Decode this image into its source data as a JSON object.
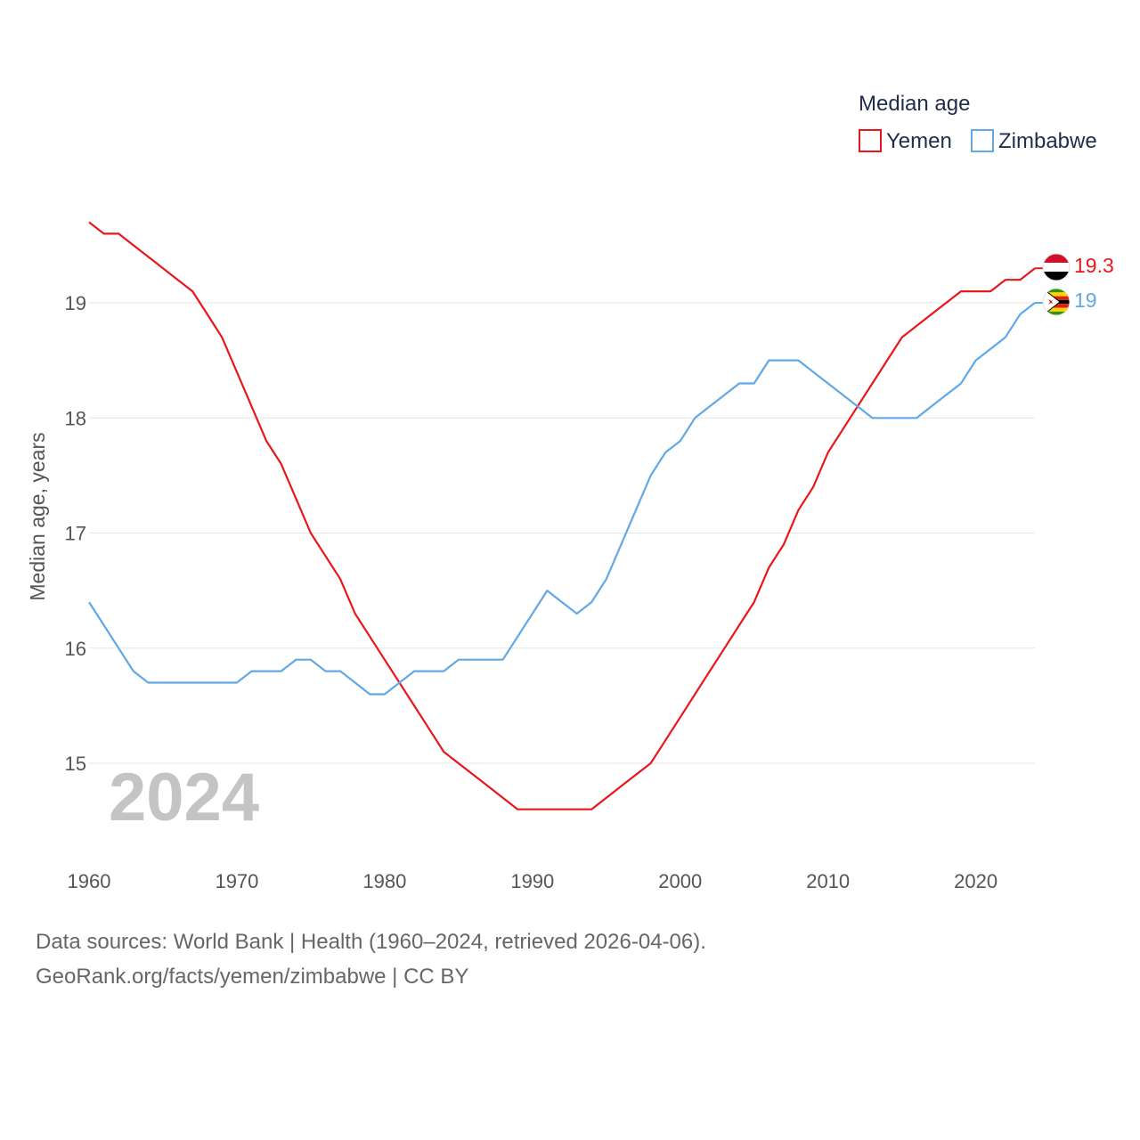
{
  "chart_data": {
    "type": "line",
    "legend_title": "Median age",
    "ylabel": "Median age, years",
    "xlabel": "",
    "current_year": "2024",
    "x_ticks": [
      "1960",
      "1970",
      "1980",
      "1990",
      "2000",
      "2010",
      "2020"
    ],
    "y_ticks": [
      "15",
      "16",
      "17",
      "18",
      "19"
    ],
    "xlim": [
      1960,
      2024
    ],
    "ylim": [
      14.4,
      19.9
    ],
    "legend_position": "top-right",
    "x": [
      1960,
      1961,
      1962,
      1963,
      1964,
      1965,
      1966,
      1967,
      1968,
      1969,
      1970,
      1971,
      1972,
      1973,
      1974,
      1975,
      1976,
      1977,
      1978,
      1979,
      1980,
      1981,
      1982,
      1983,
      1984,
      1985,
      1986,
      1987,
      1988,
      1989,
      1990,
      1991,
      1992,
      1993,
      1994,
      1995,
      1996,
      1997,
      1998,
      1999,
      2000,
      2001,
      2002,
      2003,
      2004,
      2005,
      2006,
      2007,
      2008,
      2009,
      2010,
      2011,
      2012,
      2013,
      2014,
      2015,
      2016,
      2017,
      2018,
      2019,
      2020,
      2021,
      2022,
      2023,
      2024
    ],
    "series": [
      {
        "name": "Yemen",
        "color": "#e8171c",
        "end_label": "19.3",
        "flag": "yemen-flag-icon",
        "values": [
          19.7,
          19.6,
          19.6,
          19.5,
          19.4,
          19.3,
          19.2,
          19.1,
          18.9,
          18.7,
          18.4,
          18.1,
          17.8,
          17.6,
          17.3,
          17.0,
          16.8,
          16.6,
          16.3,
          16.1,
          15.9,
          15.7,
          15.5,
          15.3,
          15.1,
          15.0,
          14.9,
          14.8,
          14.7,
          14.6,
          14.6,
          14.6,
          14.6,
          14.6,
          14.6,
          14.7,
          14.8,
          14.9,
          15.0,
          15.2,
          15.4,
          15.6,
          15.8,
          16.0,
          16.2,
          16.4,
          16.7,
          16.9,
          17.2,
          17.4,
          17.7,
          17.9,
          18.1,
          18.3,
          18.5,
          18.7,
          18.8,
          18.9,
          19.0,
          19.1,
          19.1,
          19.1,
          19.2,
          19.2,
          19.3
        ]
      },
      {
        "name": "Zimbabwe",
        "color": "#62a8e5",
        "end_label": "19",
        "flag": "zimbabwe-flag-icon",
        "values": [
          16.4,
          16.2,
          16.0,
          15.8,
          15.7,
          15.7,
          15.7,
          15.7,
          15.7,
          15.7,
          15.7,
          15.8,
          15.8,
          15.8,
          15.9,
          15.9,
          15.8,
          15.8,
          15.7,
          15.6,
          15.6,
          15.7,
          15.8,
          15.8,
          15.8,
          15.9,
          15.9,
          15.9,
          15.9,
          16.1,
          16.3,
          16.5,
          16.4,
          16.3,
          16.4,
          16.6,
          16.9,
          17.2,
          17.5,
          17.7,
          17.8,
          18.0,
          18.1,
          18.2,
          18.3,
          18.3,
          18.5,
          18.5,
          18.5,
          18.4,
          18.3,
          18.2,
          18.1,
          18.0,
          18.0,
          18.0,
          18.0,
          18.1,
          18.2,
          18.3,
          18.5,
          18.6,
          18.7,
          18.9,
          19.0
        ]
      }
    ]
  },
  "footer": {
    "line1": "Data sources: World Bank | Health (1960–2024, retrieved 2026-04-06).",
    "line2": "GeoRank.org/facts/yemen/zimbabwe | CC BY"
  }
}
